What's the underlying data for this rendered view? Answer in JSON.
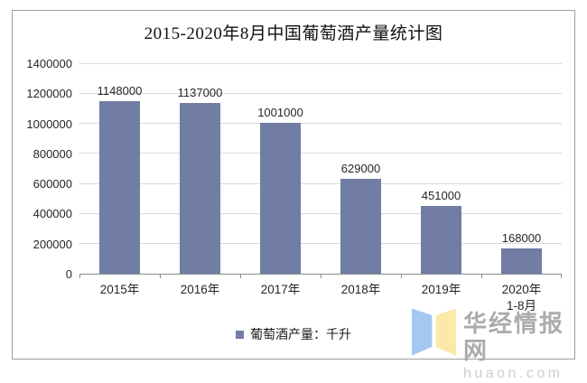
{
  "chart_data": {
    "type": "bar",
    "title": "2015-2020年8月中国葡萄酒产量统计图",
    "categories": [
      "2015年",
      "2016年",
      "2017年",
      "2018年",
      "2019年",
      "2020年\n1-8月"
    ],
    "values": [
      1148000,
      1137000,
      1001000,
      629000,
      451000,
      168000
    ],
    "data_labels": [
      "1148000",
      "1137000",
      "1001000",
      "629000",
      "451000",
      "168000"
    ],
    "xlabel": "",
    "ylabel": "",
    "ylim": [
      0,
      1400000
    ],
    "ytick_interval": 200000,
    "ytick_labels": [
      "0",
      "200000",
      "400000",
      "600000",
      "800000",
      "1000000",
      "1200000",
      "1400000"
    ],
    "grid": true,
    "legend": {
      "label": "葡萄酒产量：千升",
      "position": "bottom"
    },
    "colors": {
      "bar": "#717DA4",
      "gridline": "#d9d9d9",
      "axis": "#8c8c8c"
    }
  },
  "watermark": {
    "name": "华经情报网",
    "domain": "huaon.com",
    "logo_blue": "#9CC3F0",
    "logo_yellow": "#FBE7A0"
  }
}
